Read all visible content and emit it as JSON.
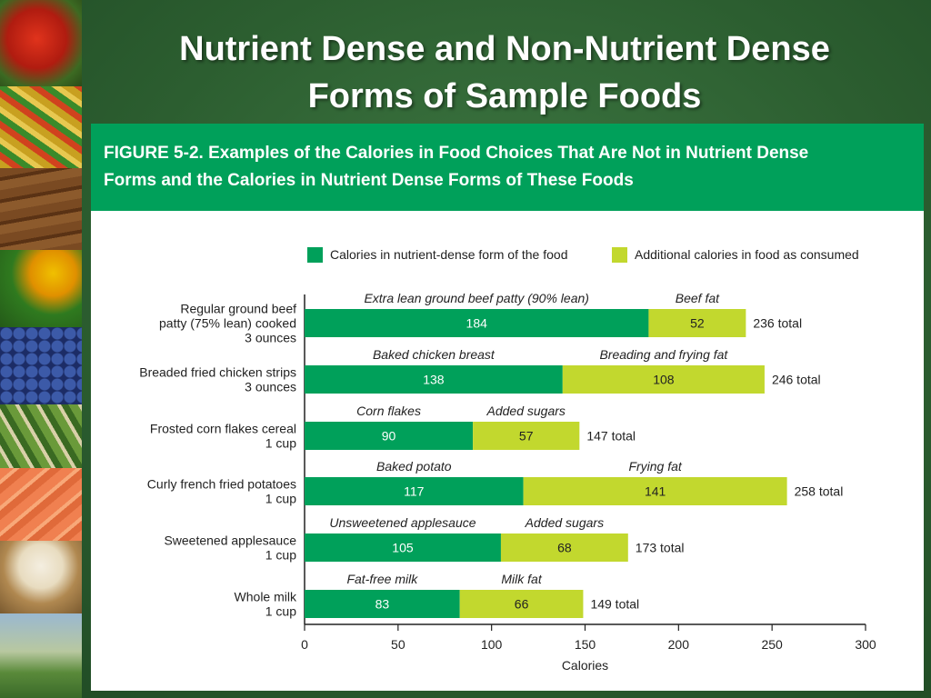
{
  "slide": {
    "title_line1": "Nutrient Dense and Non-Nutrient Dense",
    "title_line2": "Forms of Sample Foods"
  },
  "figure": {
    "caption_line1": "FIGURE 5-2. Examples of the Calories in Food Choices That Are Not in Nutrient  Dense",
    "caption_line2": "Forms and the Calories in Nutrient  Dense Forms of These Foods"
  },
  "chart_data": {
    "type": "bar",
    "orientation": "horizontal",
    "stacked": true,
    "xlabel": "Calories",
    "xlim": [
      0,
      300
    ],
    "xticks": [
      0,
      50,
      100,
      150,
      200,
      250,
      300
    ],
    "total_suffix": "total",
    "legend_position": "top",
    "series": [
      {
        "name": "Calories in nutrient-dense form of the food",
        "color": "#00a05a"
      },
      {
        "name": "Additional calories in food as consumed",
        "color": "#c2d82e"
      }
    ],
    "rows": [
      {
        "label_lines": [
          "Regular ground beef",
          "patty (75% lean) cooked",
          "3 ounces"
        ],
        "dense_name": "Extra lean ground beef patty (90% lean)",
        "dense_value": 184,
        "extra_name": "Beef fat",
        "extra_value": 52,
        "total": 236
      },
      {
        "label_lines": [
          "Breaded fried chicken strips",
          "3 ounces"
        ],
        "dense_name": "Baked chicken breast",
        "dense_value": 138,
        "extra_name": "Breading and frying fat",
        "extra_value": 108,
        "total": 246
      },
      {
        "label_lines": [
          "Frosted corn flakes cereal",
          "1 cup"
        ],
        "dense_name": "Corn flakes",
        "dense_value": 90,
        "extra_name": "Added sugars",
        "extra_value": 57,
        "total": 147
      },
      {
        "label_lines": [
          "Curly french fried potatoes",
          "1 cup"
        ],
        "dense_name": "Baked potato",
        "dense_value": 117,
        "extra_name": "Frying fat",
        "extra_value": 141,
        "total": 258
      },
      {
        "label_lines": [
          "Sweetened applesauce",
          "1 cup"
        ],
        "dense_name": "Unsweetened applesauce",
        "dense_value": 105,
        "extra_name": "Added sugars",
        "extra_value": 68,
        "total": 173
      },
      {
        "label_lines": [
          "Whole milk",
          "1 cup"
        ],
        "dense_name": "Fat-free milk",
        "dense_value": 83,
        "extra_name": "Milk fat",
        "extra_value": 66,
        "total": 149
      }
    ]
  }
}
